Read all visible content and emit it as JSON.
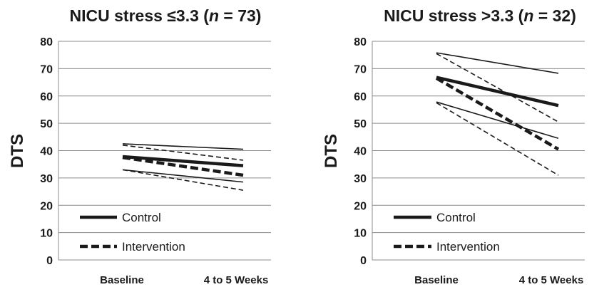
{
  "chart_data": [
    {
      "type": "line",
      "title": "NICU stress ≤3.3 (",
      "title_n": "n",
      "title_tail": " = 73)",
      "ylabel": "DTS",
      "ylim": [
        0,
        80
      ],
      "yticks": [
        0,
        10,
        20,
        30,
        40,
        50,
        60,
        70,
        80
      ],
      "categories": [
        "Baseline",
        "4 to 5 Weeks"
      ],
      "grid": true,
      "legend": "bottom-left",
      "legend_entries": [
        "Control",
        "Intervention"
      ],
      "series": [
        {
          "group": "Control",
          "role": "upper",
          "values": [
            42.5,
            40.5
          ]
        },
        {
          "group": "Control",
          "role": "mean",
          "values": [
            37.8,
            34.5
          ]
        },
        {
          "group": "Control",
          "role": "lower",
          "values": [
            33.0,
            28.5
          ]
        },
        {
          "group": "Intervention",
          "role": "upper",
          "values": [
            42.0,
            36.5
          ]
        },
        {
          "group": "Intervention",
          "role": "mean",
          "values": [
            37.5,
            31.0
          ]
        },
        {
          "group": "Intervention",
          "role": "lower",
          "values": [
            33.0,
            25.5
          ]
        }
      ]
    },
    {
      "type": "line",
      "title": "NICU stress >3.3 (",
      "title_n": "n",
      "title_tail": " = 32)",
      "ylabel": "DTS",
      "ylim": [
        0,
        80
      ],
      "yticks": [
        0,
        10,
        20,
        30,
        40,
        50,
        60,
        70,
        80
      ],
      "categories": [
        "Baseline",
        "4 to 5 Weeks"
      ],
      "grid": true,
      "legend": "bottom-left",
      "legend_entries": [
        "Control",
        "Intervention"
      ],
      "series": [
        {
          "group": "Control",
          "role": "upper",
          "values": [
            75.8,
            68.3
          ]
        },
        {
          "group": "Control",
          "role": "mean",
          "values": [
            66.8,
            56.5
          ]
        },
        {
          "group": "Control",
          "role": "lower",
          "values": [
            57.8,
            44.5
          ]
        },
        {
          "group": "Intervention",
          "role": "upper",
          "values": [
            75.5,
            50.5
          ]
        },
        {
          "group": "Intervention",
          "role": "mean",
          "values": [
            66.5,
            40.5
          ]
        },
        {
          "group": "Intervention",
          "role": "lower",
          "values": [
            57.5,
            31.0
          ]
        }
      ]
    }
  ]
}
